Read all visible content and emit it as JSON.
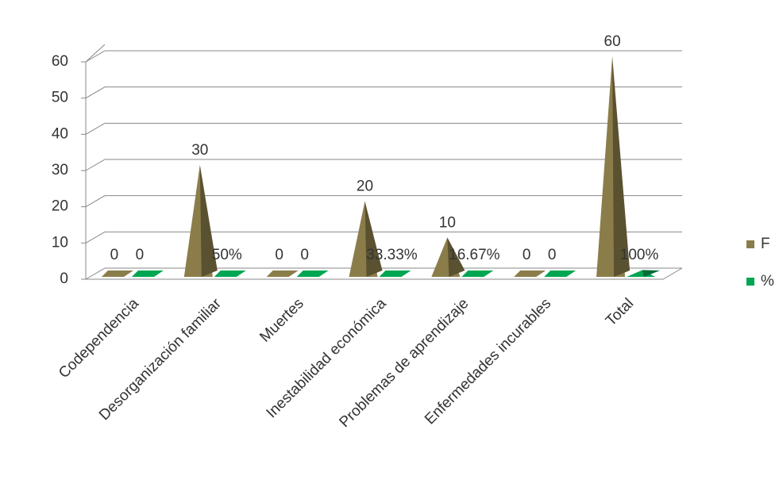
{
  "chart_data": {
    "type": "pyramid3d",
    "categories": [
      "Codependencia",
      "Desorganización familiar",
      "Muertes",
      "Inestabilidad económica",
      "Problemas de aprendizaje",
      "Enfermedades incurables",
      "Total"
    ],
    "series": [
      {
        "name": "F",
        "color": "#8b7d4a",
        "values": [
          0,
          30,
          0,
          20,
          10,
          0,
          60
        ]
      },
      {
        "name": "%",
        "color": "#00a651",
        "values": [
          0,
          0.5,
          0,
          0.3333,
          0.1667,
          0,
          1
        ],
        "value_labels": [
          "0",
          "50%",
          "0",
          "33.33%",
          "16.67%",
          "0",
          "100%"
        ]
      }
    ],
    "ylim": [
      0,
      60
    ],
    "yticks": [
      0,
      10,
      20,
      30,
      40,
      50,
      60
    ],
    "grid": true,
    "legend": "right"
  }
}
